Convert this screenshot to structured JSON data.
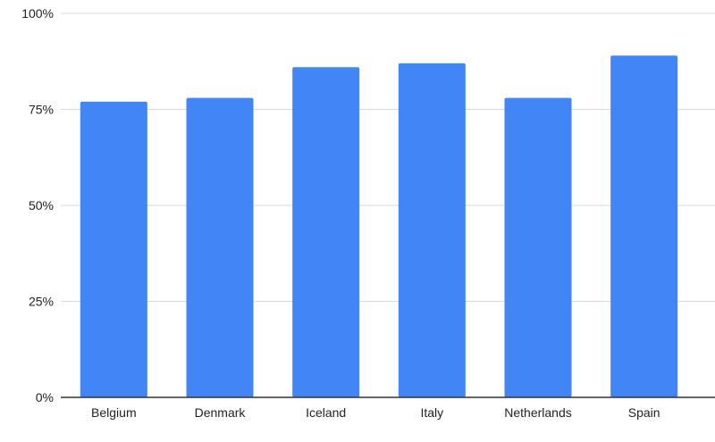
{
  "chart_data": {
    "type": "bar",
    "title": "",
    "xlabel": "",
    "ylabel": "",
    "categories": [
      "Belgium",
      "Denmark",
      "Iceland",
      "Italy",
      "Netherlands",
      "Spain"
    ],
    "series": [
      {
        "values": [
          77,
          78,
          86,
          87,
          78,
          89
        ],
        "color": "#4285f4"
      }
    ],
    "value_unit": "percent",
    "ylim": [
      0,
      100
    ],
    "yticks": [
      0,
      25,
      50,
      75,
      100
    ],
    "ytick_labels": [
      "0%",
      "25%",
      "50%",
      "75%",
      "100%"
    ],
    "grid": true,
    "legend": "none"
  }
}
